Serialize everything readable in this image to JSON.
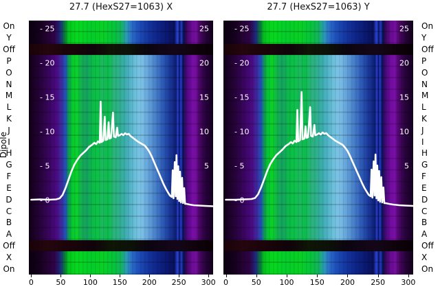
{
  "figure": {
    "background": "#ffffff",
    "ylabel": "Dipole"
  },
  "chart_data": {
    "type": "heatmap",
    "legend": "none",
    "grid": false,
    "rows": [
      "On",
      "Y",
      "Off",
      "P",
      "O",
      "N",
      "M",
      "L",
      "K",
      "J",
      "I",
      "H",
      "G",
      "F",
      "E",
      "D",
      "C",
      "B",
      "A",
      "Off",
      "X",
      "On"
    ],
    "row_axis_label": "Dipole",
    "x_ticks": [
      0,
      50,
      100,
      150,
      200,
      250,
      300
    ],
    "value_ticks": [
      25,
      20,
      15,
      10,
      5,
      0
    ],
    "xlim": [
      -4,
      308
    ],
    "vlim": [
      -10.8,
      26.2
    ],
    "line_color": "#ffffff",
    "band_layout": [
      {
        "band": "outer",
        "rowspan": 2
      },
      {
        "band": "off",
        "rowspan": 1
      },
      {
        "band": "main",
        "rowspan": 16
      },
      {
        "band": "off",
        "rowspan": 1
      },
      {
        "band": "outer",
        "rowspan": 2
      }
    ],
    "bands": {
      "main": [
        [
          0,
          "#0e0016"
        ],
        [
          0.03,
          "#1c0128"
        ],
        [
          0.07,
          "#2a0340"
        ],
        [
          0.11,
          "#3a0560"
        ],
        [
          0.15,
          "#4a0a82"
        ],
        [
          0.18,
          "#3c2ea2"
        ],
        [
          0.2,
          "#1e56b6"
        ],
        [
          0.216,
          "#0f9a50"
        ],
        [
          0.235,
          "#06c832"
        ],
        [
          0.26,
          "#0ad228"
        ],
        [
          0.28,
          "#12b44a"
        ],
        [
          0.31,
          "#16a062"
        ],
        [
          0.34,
          "#0cb84c"
        ],
        [
          0.37,
          "#0ac244"
        ],
        [
          0.4,
          "#1cb860"
        ],
        [
          0.43,
          "#0abe4a"
        ],
        [
          0.46,
          "#28b478"
        ],
        [
          0.49,
          "#2eb08c"
        ],
        [
          0.52,
          "#3aacac"
        ],
        [
          0.55,
          "#52b4c8"
        ],
        [
          0.58,
          "#6ec0dc"
        ],
        [
          0.61,
          "#7cc2e6"
        ],
        [
          0.64,
          "#6aaade"
        ],
        [
          0.67,
          "#5590d2"
        ],
        [
          0.7,
          "#3f74c4"
        ],
        [
          0.73,
          "#2c58b4"
        ],
        [
          0.76,
          "#1c3c9e"
        ],
        [
          0.785,
          "#122a84"
        ],
        [
          0.8,
          "#0c1c6e"
        ],
        [
          0.808,
          "#2e48e0"
        ],
        [
          0.816,
          "#0a1460"
        ],
        [
          0.826,
          "#2640d4"
        ],
        [
          0.836,
          "#081050"
        ],
        [
          0.85,
          "#3c0a6e"
        ],
        [
          0.875,
          "#6a0a9a"
        ],
        [
          0.9,
          "#7c10aa"
        ],
        [
          0.925,
          "#4c0668"
        ],
        [
          0.955,
          "#2a0340"
        ],
        [
          1,
          "#140020"
        ]
      ],
      "outer": [
        [
          0,
          "#0a0010"
        ],
        [
          0.06,
          "#16001e"
        ],
        [
          0.1,
          "#240232"
        ],
        [
          0.14,
          "#2e0348"
        ],
        [
          0.17,
          "#1c2a7c"
        ],
        [
          0.195,
          "#0a7a3a"
        ],
        [
          0.215,
          "#04c41e"
        ],
        [
          0.26,
          "#06d81e"
        ],
        [
          0.33,
          "#04cc2a"
        ],
        [
          0.4,
          "#08d024"
        ],
        [
          0.46,
          "#06c43a"
        ],
        [
          0.5,
          "#12b45c"
        ],
        [
          0.53,
          "#2a9ab6"
        ],
        [
          0.56,
          "#2a6ac8"
        ],
        [
          0.6,
          "#1c4cb8"
        ],
        [
          0.65,
          "#14349e"
        ],
        [
          0.7,
          "#0e2488"
        ],
        [
          0.75,
          "#0a1870"
        ],
        [
          0.79,
          "#081058"
        ],
        [
          0.808,
          "#2e48e0"
        ],
        [
          0.818,
          "#091258"
        ],
        [
          0.828,
          "#2440d0"
        ],
        [
          0.84,
          "#070e48"
        ],
        [
          0.855,
          "#3a085e"
        ],
        [
          0.88,
          "#660a92"
        ],
        [
          0.905,
          "#74109e"
        ],
        [
          0.93,
          "#46055e"
        ],
        [
          0.96,
          "#26033a"
        ],
        [
          1,
          "#120018"
        ]
      ],
      "off": [
        [
          0,
          "#180208"
        ],
        [
          0.1,
          "#26060e"
        ],
        [
          0.2,
          "#1c040a"
        ],
        [
          0.35,
          "#10030a"
        ],
        [
          0.45,
          "#0e1606"
        ],
        [
          0.55,
          "#0c1208"
        ],
        [
          0.65,
          "#0c0410"
        ],
        [
          0.8,
          "#14061a"
        ],
        [
          0.9,
          "#10030c"
        ],
        [
          1,
          "#080004"
        ]
      ]
    },
    "panels": [
      {
        "title": "27.7 (HexS27=1063) X",
        "line": {
          "x": [
            0,
            15,
            30,
            42,
            48,
            53,
            58,
            63,
            68,
            73,
            78,
            83,
            88,
            93,
            98,
            103,
            107,
            110,
            113,
            116,
            117.5,
            119,
            122,
            124.5,
            126,
            129,
            131,
            132.5,
            135,
            138.5,
            140,
            143,
            145.5,
            147,
            150,
            153,
            156,
            159,
            162,
            165,
            168,
            171,
            174,
            177,
            180,
            184,
            188,
            192,
            196,
            200,
            204,
            208,
            212,
            216,
            220,
            224,
            228,
            232,
            235,
            238,
            239.5,
            241,
            243,
            244.5,
            246,
            247.5,
            249,
            250.5,
            252,
            253.5,
            255.5,
            257,
            259,
            260.5,
            263,
            268,
            275,
            285,
            295,
            308
          ],
          "v": [
            0.1,
            0.15,
            0.1,
            0.15,
            0.3,
            0.8,
            1.8,
            3.0,
            4.2,
            5.2,
            5.9,
            6.5,
            6.9,
            7.3,
            7.8,
            8.1,
            8.4,
            8.2,
            8.6,
            8.4,
            14.4,
            8.5,
            8.7,
            12.2,
            8.8,
            8.9,
            11.4,
            9.0,
            9.1,
            12.8,
            9.3,
            9.2,
            10.6,
            9.4,
            9.5,
            9.7,
            9.5,
            9.8,
            9.6,
            9.7,
            9.4,
            9.2,
            9.0,
            8.8,
            8.6,
            8.4,
            8.2,
            8.0,
            7.6,
            7.1,
            6.4,
            5.6,
            4.8,
            4.0,
            3.2,
            2.4,
            1.7,
            1.1,
            0.7,
            0.5,
            4.4,
            0.3,
            5.6,
            0.6,
            6.6,
            0.2,
            5.0,
            -0.1,
            4.2,
            -0.3,
            3.3,
            -0.4,
            1.8,
            -0.5,
            -0.5,
            -0.6,
            -0.7,
            -0.75,
            -0.8,
            -0.85
          ]
        }
      },
      {
        "title": "27.7 (HexS27=1063) Y",
        "line": {
          "x": [
            0,
            15,
            30,
            42,
            48,
            53,
            58,
            63,
            68,
            73,
            78,
            83,
            88,
            93,
            98,
            103,
            107,
            110,
            113,
            116,
            117.5,
            119,
            122,
            124.5,
            126,
            129,
            131,
            132.5,
            135,
            138.5,
            140,
            143,
            145.5,
            147,
            150,
            153,
            156,
            159,
            162,
            165,
            168,
            171,
            174,
            177,
            180,
            184,
            188,
            192,
            196,
            200,
            204,
            208,
            212,
            216,
            220,
            224,
            228,
            232,
            235,
            238,
            239.5,
            241,
            243,
            244.5,
            246,
            247.5,
            249,
            250.5,
            252,
            253.5,
            255.5,
            257,
            259,
            260.5,
            263,
            268,
            275,
            285,
            295,
            308
          ],
          "v": [
            0.1,
            0.1,
            0.15,
            0.2,
            0.35,
            0.9,
            1.9,
            3.1,
            4.3,
            5.3,
            6.0,
            6.6,
            7.0,
            7.4,
            7.9,
            8.2,
            8.5,
            8.3,
            8.7,
            8.5,
            13.2,
            8.6,
            8.8,
            15.8,
            8.9,
            9.0,
            10.8,
            9.1,
            9.2,
            13.6,
            9.4,
            9.3,
            11.0,
            9.5,
            9.6,
            9.8,
            9.6,
            9.9,
            9.7,
            9.8,
            9.5,
            9.3,
            9.1,
            8.9,
            8.7,
            8.5,
            8.3,
            8.1,
            7.7,
            7.2,
            6.5,
            5.7,
            4.9,
            4.1,
            3.3,
            2.5,
            1.8,
            1.2,
            0.8,
            0.6,
            4.5,
            0.4,
            5.7,
            0.7,
            6.7,
            0.3,
            5.1,
            0.0,
            4.3,
            -0.2,
            3.4,
            -0.3,
            1.9,
            -0.4,
            -0.4,
            -0.5,
            -0.6,
            -0.7,
            -0.75,
            -0.8
          ]
        }
      }
    ]
  }
}
